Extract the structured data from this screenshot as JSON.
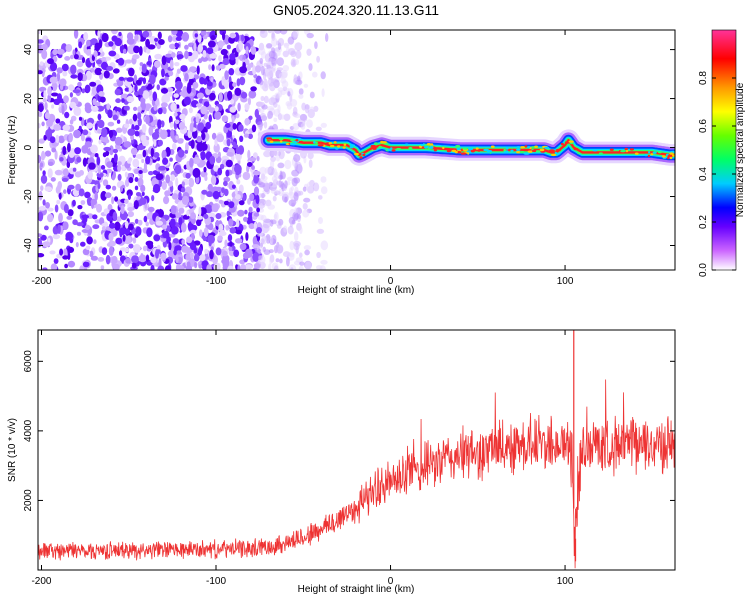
{
  "title": "GN05.2024.320.11.13.G11",
  "chart_data": [
    {
      "type": "heatmap",
      "xlabel": "Height of straight line (km)",
      "ylabel": "Frequency (Hz)",
      "xlim": [
        -202,
        163
      ],
      "ylim": [
        -50,
        48
      ],
      "x_ticks": [
        -200,
        -100,
        0,
        100
      ],
      "y_ticks": [
        -40,
        -20,
        0,
        20,
        40
      ],
      "colorbar": {
        "label": "Normalized spectral amplitude",
        "range": [
          0,
          1
        ],
        "ticks": [
          "0.0",
          "0.2",
          "0.4",
          "0.6",
          "0.8"
        ],
        "colors": [
          "#ffffff",
          "#cc66ff",
          "#6600ff",
          "#0000ff",
          "#00ccff",
          "#00ff66",
          "#66ff00",
          "#ffff00",
          "#ff9900",
          "#ff0000",
          "#ff3399"
        ]
      },
      "signal_track": {
        "x": [
          -70,
          -60,
          -50,
          -40,
          -35,
          -25,
          -20,
          -18,
          -15,
          -10,
          -5,
          0,
          20,
          40,
          60,
          80,
          88,
          92,
          95,
          100,
          102,
          105,
          110,
          120,
          140,
          150,
          160,
          163
        ],
        "y": [
          3,
          3,
          2,
          2,
          1,
          1,
          -1,
          -3,
          -2,
          0,
          1,
          0,
          0,
          -1,
          -1,
          -1,
          -1,
          -2,
          -2,
          1,
          3,
          0,
          -2,
          -2,
          -2,
          -2,
          -3,
          -3
        ]
      },
      "noise_region_x": [
        -202,
        -35
      ]
    },
    {
      "type": "line",
      "xlabel": "Height of straight line (km)",
      "ylabel": "SNR (10 * v/v)",
      "xlim": [
        -202,
        163
      ],
      "ylim": [
        0,
        6900
      ],
      "x_ticks": [
        -200,
        -100,
        0,
        100
      ],
      "y_ticks": [
        2000,
        4000,
        6000
      ],
      "line_color": "#ee3333",
      "series": [
        {
          "x": [
            -202,
            -180,
            -160,
            -140,
            -120,
            -100,
            -80,
            -70,
            -60,
            -50,
            -40,
            -30,
            -20,
            -10,
            -5,
            0,
            10,
            20,
            30,
            40,
            50,
            60,
            70,
            80,
            90,
            100,
            103,
            106,
            108,
            110,
            115,
            120,
            130,
            140,
            150,
            163
          ],
          "values": [
            550,
            560,
            560,
            570,
            580,
            590,
            620,
            680,
            780,
            950,
            1150,
            1450,
            1800,
            2250,
            2450,
            2500,
            2750,
            2950,
            3150,
            3300,
            3350,
            3450,
            3600,
            3650,
            3650,
            3600,
            3500,
            900,
            3200,
            3400,
            3550,
            3600,
            3600,
            3600,
            3600,
            3650
          ]
        }
      ],
      "spikes": [
        {
          "x": 105,
          "y": 6900
        },
        {
          "x": 106,
          "y": 250
        }
      ]
    }
  ]
}
